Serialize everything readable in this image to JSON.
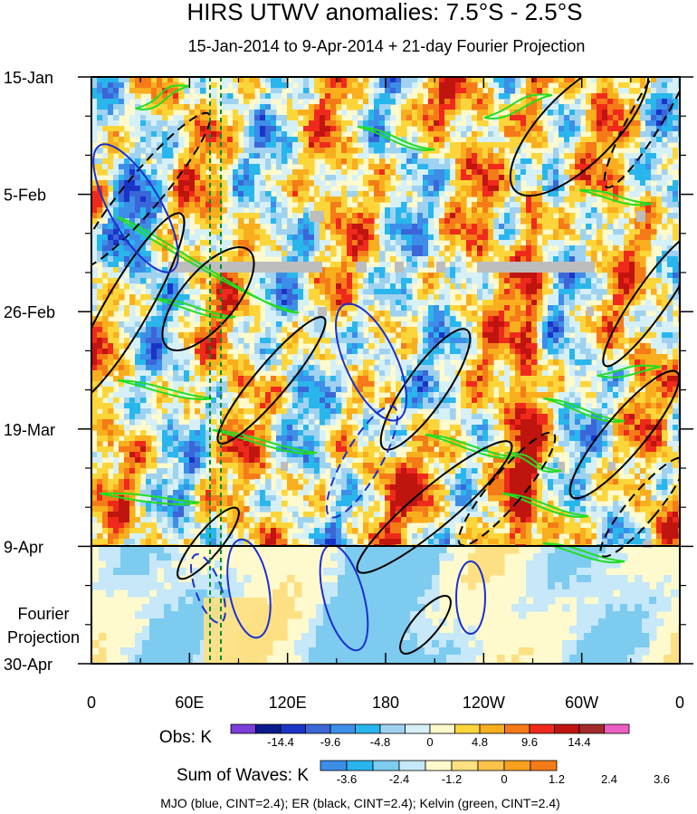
{
  "chart_data": {
    "type": "heatmap",
    "title": "HIRS UTWV anomalies: 7.5°S - 2.5°S",
    "subtitle": "15-Jan-2014 to 9-Apr-2014 + 21-day Fourier Projection",
    "x_ticks": [
      "0",
      "60E",
      "120E",
      "180",
      "120W",
      "60W",
      "0"
    ],
    "x_tick_values": [
      0,
      60,
      120,
      180,
      240,
      300,
      360
    ],
    "xlim": [
      0,
      360
    ],
    "y_ticks": [
      "15-Jan",
      "5-Feb",
      "26-Feb",
      "19-Mar",
      "9-Apr",
      "30-Apr"
    ],
    "y_tick_values": [
      0,
      21,
      42,
      63,
      84,
      105
    ],
    "ylim": [
      0,
      105
    ],
    "projection_label": [
      "Fourier",
      "Projection"
    ],
    "colorbars": [
      {
        "label": "Obs: K",
        "colors": [
          "#7d3ddb",
          "#0a1a8c",
          "#1a34c8",
          "#3a66d8",
          "#3c8ee8",
          "#29b6ec",
          "#9ed2f0",
          "#d6f0f8",
          "#fffacd",
          "#fcd53a",
          "#f9ae1e",
          "#f57b18",
          "#ef2a1c",
          "#c0140f",
          "#a52a2a",
          "#ec5fc2"
        ],
        "tick_labels": [
          "-14.4",
          "-9.6",
          "-4.8",
          "0",
          "4.8",
          "9.6",
          "14.4"
        ]
      },
      {
        "label": "Sum of Waves: K",
        "colors": [
          "#3c8ee8",
          "#29b6ec",
          "#7ecbf0",
          "#c6e8f8",
          "#fffacd",
          "#fce083",
          "#fcc34a",
          "#f9a01e",
          "#f57b18"
        ],
        "tick_labels": [
          "-3.6",
          "-2.4",
          "-1.2",
          "0",
          "1.2",
          "2.4",
          "3.6"
        ]
      }
    ],
    "footer": "MJO (blue, CINT=2.4); ER (black, CINT=2.4); Kelvin (green, CINT=2.4)"
  }
}
